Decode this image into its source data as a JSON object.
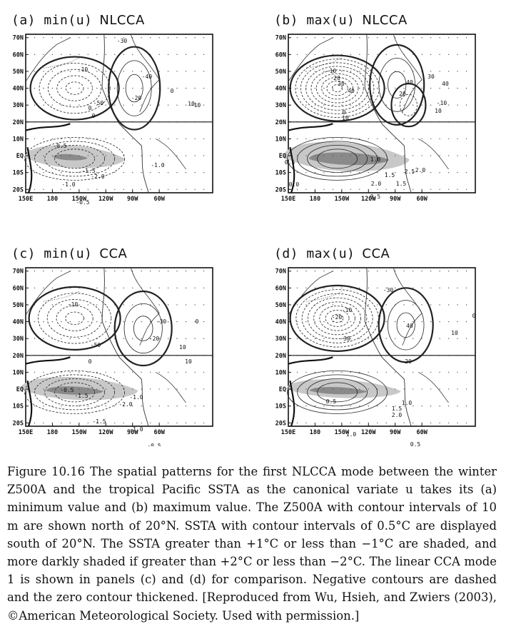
{
  "panels": [
    {
      "id": "a",
      "label": "(a) min(u)",
      "mode": "NLCCA"
    },
    {
      "id": "b",
      "label": "(b) max(u)",
      "mode": "NLCCA"
    },
    {
      "id": "c",
      "label": "(c) min(u)",
      "mode": "CCA"
    },
    {
      "id": "d",
      "label": "(d) max(u)",
      "mode": "CCA"
    }
  ],
  "axes": {
    "lat_labels": [
      "70N",
      "60N",
      "50N",
      "40N",
      "30N",
      "20N",
      "10N",
      "EQ",
      "10S",
      "20S"
    ],
    "lon_labels": [
      "150E",
      "180",
      "150W",
      "120W",
      "90W",
      "60W"
    ]
  },
  "contour_labels": {
    "a": [
      "-30",
      "-10",
      "-40",
      "-20",
      "0",
      "-50",
      "-10",
      "0",
      "10",
      "0",
      "-0.5",
      "-1.5",
      "-2.0",
      "-1.0",
      "-1.0",
      "-0.5"
    ],
    "b": [
      "-10",
      "20",
      "30",
      "40",
      "0",
      "10",
      "20",
      "-10",
      "40",
      "10",
      "40",
      "30",
      "0.5",
      "1.0",
      "1.5",
      "2.5",
      "2.0",
      "2.0",
      "1.5",
      "0.5",
      "0.0"
    ],
    "c": [
      "-10",
      "-30",
      "-20",
      "-50",
      "0",
      "10",
      "10",
      "0",
      "-0.5",
      "-1.5",
      "-2.0",
      "-1.0",
      "-1.5",
      "-1.0",
      "-0.5"
    ],
    "d": [
      "-30",
      "-10",
      "-20",
      "40",
      "30",
      "20",
      "10",
      "0",
      "0.5",
      "1.0",
      "1.5",
      "2.0",
      "1.0",
      "0.5"
    ]
  },
  "caption": "Figure 10.16 The spatial patterns for the first NLCCA mode between the winter Z500A and the tropical Pacific SSTA as the canonical variate u takes its (a) minimum value and (b) maximum value. The Z500A with contour intervals of 10 m are shown north of 20°N. SSTA with contour intervals of 0.5°C are displayed south of 20°N. The SSTA greater than +1°C or less than −1°C are shaded, and more darkly shaded if greater than +2°C or less than −2°C. The linear CCA mode 1 is shown in panels (c) and (d) for comparison. Negative contours are dashed and the zero contour thickened. [Reproduced from Wu, Hsieh, and Zwiers (2003), ©American Meteorological Society. Used with permission.]"
}
